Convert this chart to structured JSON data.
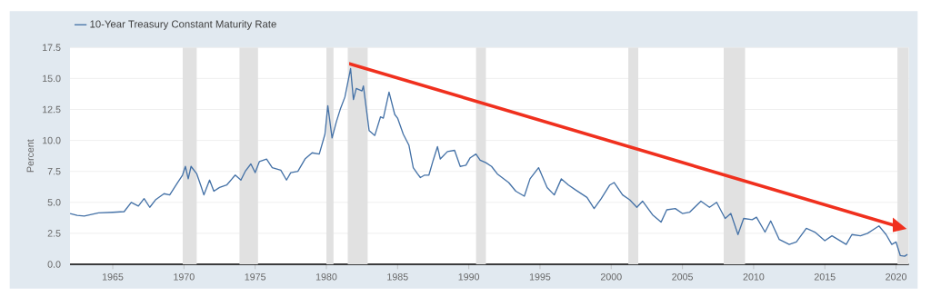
{
  "chart_data": {
    "type": "line",
    "ylabel": "Percent",
    "xlim": [
      1962,
      2020.9
    ],
    "ylim": [
      0,
      17.5
    ],
    "xticks": [
      1965,
      1970,
      1975,
      1980,
      1985,
      1990,
      1995,
      2000,
      2005,
      2010,
      2015,
      2020
    ],
    "yticks": [
      {
        "value": 0,
        "label": "0.0"
      },
      {
        "value": 2.5,
        "label": "2.5"
      },
      {
        "value": 5,
        "label": "5.0"
      },
      {
        "value": 7.5,
        "label": "7.5"
      },
      {
        "value": 10,
        "label": "10.0"
      },
      {
        "value": 12.5,
        "label": "12.5"
      },
      {
        "value": 15,
        "label": "15.0"
      },
      {
        "value": 17.5,
        "label": "17.5"
      }
    ],
    "grid": "y",
    "legend": "top left",
    "bands": [
      {
        "axis": "x",
        "from": 1969.9,
        "to": 1970.9,
        "color": "#e1e1e1"
      },
      {
        "axis": "x",
        "from": 1973.9,
        "to": 1975.2,
        "color": "#e1e1e1"
      },
      {
        "axis": "x",
        "from": 1980.0,
        "to": 1980.5,
        "color": "#e1e1e1"
      },
      {
        "axis": "x",
        "from": 1981.5,
        "to": 1982.9,
        "color": "#e1e1e1"
      },
      {
        "axis": "x",
        "from": 1990.5,
        "to": 1991.2,
        "color": "#e1e1e1"
      },
      {
        "axis": "x",
        "from": 2001.2,
        "to": 2001.9,
        "color": "#e1e1e1"
      },
      {
        "axis": "x",
        "from": 2007.9,
        "to": 2009.4,
        "color": "#e1e1e1"
      },
      {
        "axis": "x",
        "from": 2020.1,
        "to": 2020.9,
        "color": "#e1e1e1"
      }
    ],
    "series": [
      {
        "name": "10-Year Treasury Constant Maturity Rate",
        "color": "#4572a7",
        "x": [
          1962.0,
          1962.5,
          1963,
          1964,
          1965,
          1965.8,
          1966.3,
          1966.8,
          1967.2,
          1967.6,
          1968,
          1968.6,
          1969,
          1969.5,
          1969.9,
          1970.1,
          1970.3,
          1970.5,
          1970.9,
          1971.2,
          1971.4,
          1971.8,
          1972.1,
          1972.5,
          1973,
          1973.6,
          1974,
          1974.3,
          1974.7,
          1975,
          1975.3,
          1975.8,
          1976.2,
          1976.8,
          1977.2,
          1977.5,
          1978,
          1978.5,
          1979,
          1979.5,
          1979.9,
          1980.1,
          1980.4,
          1980.7,
          1981,
          1981.3,
          1981.7,
          1981.9,
          1982.1,
          1982.5,
          1982.6,
          1983.0,
          1983.4,
          1983.8,
          1984.0,
          1984.4,
          1984.8,
          1985,
          1985.4,
          1985.8,
          1986.1,
          1986.4,
          1986.6,
          1986.9,
          1987.2,
          1987.5,
          1987.8,
          1988,
          1988.5,
          1989,
          1989.4,
          1989.8,
          1990.1,
          1990.5,
          1990.8,
          1991.2,
          1991.6,
          1992,
          1992.8,
          1993.3,
          1993.9,
          1994.3,
          1994.9,
          1995.5,
          1996,
          1996.5,
          1997,
          1997.5,
          1998.3,
          1998.8,
          1999.3,
          1999.9,
          2000.2,
          2000.8,
          2001.3,
          2001.8,
          2002.2,
          2002.9,
          2003.5,
          2003.9,
          2004.5,
          2005,
          2005.5,
          2006.3,
          2006.9,
          2007.4,
          2008,
          2008.4,
          2008.9,
          2009.3,
          2009.9,
          2010.2,
          2010.8,
          2011.2,
          2011.8,
          2012.5,
          2013,
          2013.7,
          2014.3,
          2015,
          2015.5,
          2016.5,
          2016.9,
          2017.5,
          2018,
          2018.8,
          2019.3,
          2019.7,
          2020.0,
          2020.3,
          2020.6,
          2020.8
        ],
        "values": [
          4.1,
          3.95,
          3.9,
          4.15,
          4.2,
          4.25,
          5.0,
          4.7,
          5.3,
          4.6,
          5.2,
          5.7,
          5.6,
          6.5,
          7.2,
          7.9,
          6.9,
          7.9,
          7.3,
          6.3,
          5.6,
          6.8,
          5.9,
          6.2,
          6.4,
          7.2,
          6.8,
          7.5,
          8.1,
          7.4,
          8.3,
          8.5,
          7.8,
          7.6,
          6.8,
          7.4,
          7.5,
          8.5,
          9.0,
          8.9,
          10.5,
          12.8,
          10.2,
          11.5,
          12.6,
          13.5,
          15.8,
          13.3,
          14.2,
          14.0,
          14.4,
          10.8,
          10.4,
          11.9,
          11.8,
          13.9,
          12.1,
          11.8,
          10.5,
          9.6,
          7.8,
          7.3,
          7.0,
          7.2,
          7.2,
          8.4,
          9.5,
          8.5,
          9.1,
          9.2,
          7.9,
          8.0,
          8.6,
          8.9,
          8.4,
          8.2,
          7.9,
          7.3,
          6.6,
          5.9,
          5.5,
          6.9,
          7.8,
          6.2,
          5.6,
          6.9,
          6.4,
          6.0,
          5.4,
          4.5,
          5.3,
          6.4,
          6.6,
          5.6,
          5.2,
          4.6,
          5.1,
          4.0,
          3.4,
          4.4,
          4.5,
          4.1,
          4.2,
          5.1,
          4.6,
          5.0,
          3.7,
          4.1,
          2.4,
          3.7,
          3.6,
          3.8,
          2.6,
          3.5,
          2.0,
          1.6,
          1.8,
          2.9,
          2.6,
          1.9,
          2.3,
          1.6,
          2.4,
          2.3,
          2.5,
          3.1,
          2.4,
          1.6,
          1.8,
          0.7,
          0.65,
          0.8
        ]
      }
    ]
  }
}
